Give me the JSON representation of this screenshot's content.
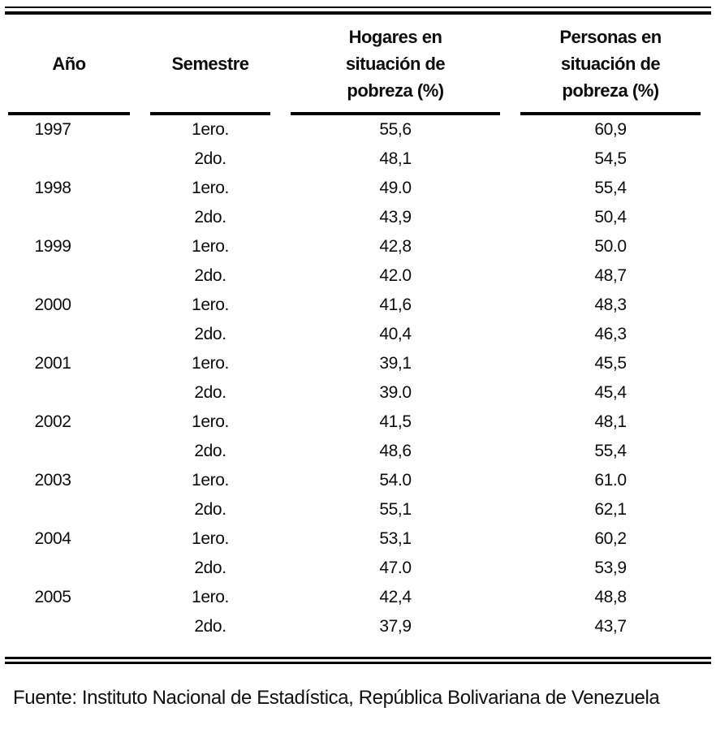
{
  "table": {
    "headers": {
      "year": "Año",
      "semester": "Semestre",
      "households": "Hogares en situación de pobreza (%)",
      "persons": "Personas en situación de pobreza (%)"
    },
    "rows": [
      {
        "year": "1997",
        "semester": "1ero.",
        "households": "55,6",
        "persons": "60,9"
      },
      {
        "year": "",
        "semester": "2do.",
        "households": "48,1",
        "persons": "54,5"
      },
      {
        "year": "1998",
        "semester": "1ero.",
        "households": "49.0",
        "persons": "55,4"
      },
      {
        "year": "",
        "semester": "2do.",
        "households": "43,9",
        "persons": "50,4"
      },
      {
        "year": "1999",
        "semester": "1ero.",
        "households": "42,8",
        "persons": "50.0"
      },
      {
        "year": "",
        "semester": "2do.",
        "households": "42.0",
        "persons": "48,7"
      },
      {
        "year": "2000",
        "semester": "1ero.",
        "households": "41,6",
        "persons": "48,3"
      },
      {
        "year": "",
        "semester": "2do.",
        "households": "40,4",
        "persons": "46,3"
      },
      {
        "year": "2001",
        "semester": "1ero.",
        "households": "39,1",
        "persons": "45,5"
      },
      {
        "year": "",
        "semester": "2do.",
        "households": "39.0",
        "persons": "45,4"
      },
      {
        "year": "2002",
        "semester": "1ero.",
        "households": "41,5",
        "persons": "48,1"
      },
      {
        "year": "",
        "semester": "2do.",
        "households": "48,6",
        "persons": "55,4"
      },
      {
        "year": "2003",
        "semester": "1ero.",
        "households": "54.0",
        "persons": "61.0"
      },
      {
        "year": "",
        "semester": "2do.",
        "households": "55,1",
        "persons": "62,1"
      },
      {
        "year": "2004",
        "semester": "1ero.",
        "households": "53,1",
        "persons": "60,2"
      },
      {
        "year": "",
        "semester": "2do.",
        "households": "47.0",
        "persons": "53,9"
      },
      {
        "year": "2005",
        "semester": "1ero.",
        "households": "42,4",
        "persons": "48,8"
      },
      {
        "year": "",
        "semester": "2do.",
        "households": "37,9",
        "persons": "43,7"
      }
    ]
  },
  "footer": {
    "source": "Fuente: Instituto Nacional de Estadística, República Bolivariana de Venezuela"
  }
}
